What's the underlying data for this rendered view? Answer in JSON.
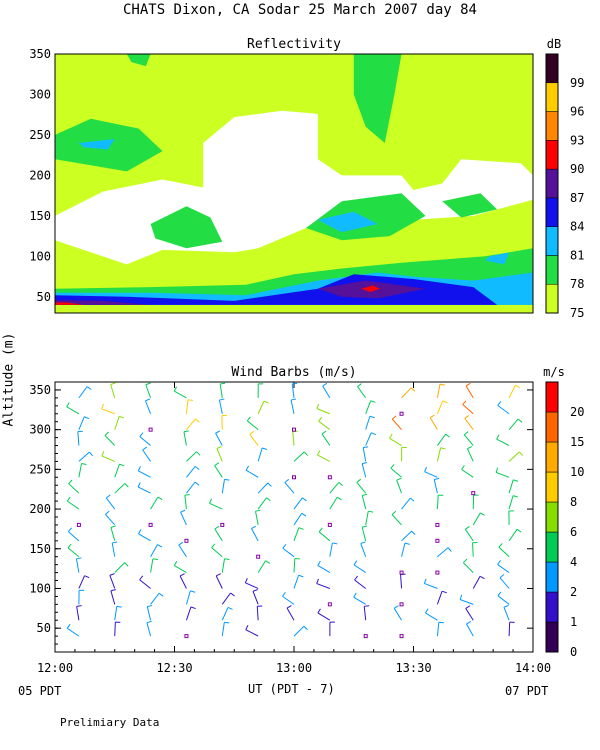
{
  "title": "CHATS Dixon, CA   Sodar   25 March 2007   day  84",
  "yaxis_label": "Altitude  (m)",
  "xaxis_label": "UT  (PDT - 7)",
  "left_time_label": "05 PDT",
  "right_time_label": "07 PDT",
  "footer_note": "Prelimiary Data",
  "chart_data": [
    {
      "type": "heatmap",
      "title": "Reflectivity",
      "colorbar_unit": "dB",
      "x_ticks": [
        "12:00",
        "12:30",
        "13:00",
        "13:30",
        "14:00"
      ],
      "x_range_hours_ut": [
        12.0,
        14.0
      ],
      "y_ticks": [
        50,
        100,
        150,
        200,
        250,
        300,
        350
      ],
      "ylim": [
        30,
        350
      ],
      "color_levels": [
        {
          "label": "75",
          "color": "#ccff22"
        },
        {
          "label": "78",
          "color": "#22dd44"
        },
        {
          "label": "81",
          "color": "#11bbff"
        },
        {
          "label": "84",
          "color": "#1111ee"
        },
        {
          "label": "87",
          "color": "#551199"
        },
        {
          "label": "90",
          "color": "#ff0000"
        },
        {
          "label": "93",
          "color": "#ff8800"
        },
        {
          "label": "96",
          "color": "#ffcc00"
        },
        {
          "label": "99",
          "color": "#330022"
        }
      ],
      "regions": [
        {
          "level": "75",
          "polygon_time_alt": [
            [
              12.0,
              30
            ],
            [
              14.0,
              30
            ],
            [
              14.0,
              350
            ],
            [
              12.0,
              350
            ]
          ]
        },
        {
          "level": "none",
          "polygon_time_alt": [
            [
              12.0,
              150
            ],
            [
              12.2,
              180
            ],
            [
              12.45,
              195
            ],
            [
              12.62,
              185
            ],
            [
              12.62,
              240
            ],
            [
              12.75,
              272
            ],
            [
              12.95,
              280
            ],
            [
              13.1,
              276
            ],
            [
              13.1,
              220
            ],
            [
              13.2,
              200
            ],
            [
              13.45,
              200
            ],
            [
              13.5,
              182
            ],
            [
              13.62,
              190
            ],
            [
              13.7,
              220
            ],
            [
              13.95,
              215
            ],
            [
              14.0,
              200
            ],
            [
              14.0,
              170
            ],
            [
              13.75,
              150
            ],
            [
              13.5,
              145
            ],
            [
              13.3,
              130
            ],
            [
              13.05,
              135
            ],
            [
              12.85,
              110
            ],
            [
              12.75,
              105
            ],
            [
              12.45,
              108
            ],
            [
              12.3,
              90
            ],
            [
              12.0,
              120
            ]
          ]
        },
        {
          "level": "78",
          "polygon_time_alt": [
            [
              12.0,
              60
            ],
            [
              12.4,
              62
            ],
            [
              12.8,
              65
            ],
            [
              13.0,
              78
            ],
            [
              13.2,
              85
            ],
            [
              13.45,
              92
            ],
            [
              13.8,
              100
            ],
            [
              14.0,
              110
            ],
            [
              14.0,
              40
            ],
            [
              12.0,
              40
            ]
          ]
        },
        {
          "level": "78",
          "polygon_time_alt": [
            [
              12.0,
              250
            ],
            [
              12.15,
              270
            ],
            [
              12.35,
              258
            ],
            [
              12.45,
              230
            ],
            [
              12.3,
              205
            ],
            [
              12.1,
              215
            ],
            [
              12.0,
              220
            ]
          ]
        },
        {
          "level": "78",
          "polygon_time_alt": [
            [
              12.4,
              140
            ],
            [
              12.55,
              162
            ],
            [
              12.65,
              148
            ],
            [
              12.7,
              118
            ],
            [
              12.55,
              110
            ],
            [
              12.42,
              122
            ]
          ]
        },
        {
          "level": "78",
          "polygon_time_alt": [
            [
              13.05,
              135
            ],
            [
              13.2,
              168
            ],
            [
              13.45,
              178
            ],
            [
              13.55,
              150
            ],
            [
              13.4,
              125
            ],
            [
              13.2,
              120
            ]
          ]
        },
        {
          "level": "78",
          "polygon_time_alt": [
            [
              13.62,
              168
            ],
            [
              13.78,
              178
            ],
            [
              13.85,
              158
            ],
            [
              13.7,
              148
            ]
          ]
        },
        {
          "level": "78",
          "polygon_time_alt": [
            [
              13.25,
              350
            ],
            [
              13.45,
              350
            ],
            [
              13.42,
              300
            ],
            [
              13.38,
              240
            ],
            [
              13.3,
              260
            ],
            [
              13.25,
              300
            ]
          ]
        },
        {
          "level": "78",
          "polygon_time_alt": [
            [
              12.3,
              350
            ],
            [
              12.4,
              350
            ],
            [
              12.38,
              335
            ],
            [
              12.32,
              340
            ]
          ]
        },
        {
          "level": "81",
          "polygon_time_alt": [
            [
              12.0,
              40
            ],
            [
              14.0,
              40
            ],
            [
              14.0,
              80
            ],
            [
              13.75,
              70
            ],
            [
              13.5,
              75
            ],
            [
              13.35,
              80
            ],
            [
              13.1,
              70
            ],
            [
              12.8,
              52
            ],
            [
              12.4,
              55
            ],
            [
              12.0,
              55
            ]
          ]
        },
        {
          "level": "81",
          "polygon_time_alt": [
            [
              12.1,
              240
            ],
            [
              12.25,
              245
            ],
            [
              12.22,
              232
            ],
            [
              12.12,
              235
            ]
          ]
        },
        {
          "level": "81",
          "polygon_time_alt": [
            [
              13.1,
              145
            ],
            [
              13.25,
              155
            ],
            [
              13.35,
              140
            ],
            [
              13.2,
              130
            ]
          ]
        },
        {
          "level": "81",
          "polygon_time_alt": [
            [
              13.82,
              100
            ],
            [
              13.9,
              105
            ],
            [
              13.88,
              90
            ],
            [
              13.8,
              95
            ]
          ]
        },
        {
          "level": "84",
          "polygon_time_alt": [
            [
              12.0,
              40
            ],
            [
              13.85,
              40
            ],
            [
              13.75,
              62
            ],
            [
              13.5,
              72
            ],
            [
              13.25,
              78
            ],
            [
              13.1,
              60
            ],
            [
              12.75,
              45
            ],
            [
              12.3,
              50
            ],
            [
              12.0,
              52
            ]
          ]
        },
        {
          "level": "87",
          "polygon_time_alt": [
            [
              12.0,
              40
            ],
            [
              12.4,
              40
            ],
            [
              12.2,
              45
            ],
            [
              12.0,
              46
            ]
          ]
        },
        {
          "level": "87",
          "polygon_time_alt": [
            [
              13.1,
              60
            ],
            [
              13.3,
              70
            ],
            [
              13.55,
              60
            ],
            [
              13.35,
              48
            ],
            [
              13.2,
              50
            ]
          ]
        },
        {
          "level": "90",
          "polygon_time_alt": [
            [
              13.28,
              60
            ],
            [
              13.33,
              64
            ],
            [
              13.36,
              60
            ],
            [
              13.32,
              56
            ]
          ]
        },
        {
          "level": "90",
          "polygon_time_alt": [
            [
              12.0,
              40
            ],
            [
              12.12,
              40
            ],
            [
              12.05,
              43
            ],
            [
              12.0,
              43
            ]
          ]
        }
      ]
    },
    {
      "type": "scatter",
      "title": "Wind Barbs (m/s)",
      "colorbar_unit": "m/s",
      "x_ticks": [
        "12:00",
        "12:30",
        "13:00",
        "13:30",
        "14:00"
      ],
      "x_range_hours_ut": [
        12.0,
        14.0
      ],
      "y_ticks": [
        50,
        100,
        150,
        200,
        250,
        300,
        350
      ],
      "ylim": [
        20,
        360
      ],
      "color_levels": [
        {
          "label": "0",
          "color": "#330055"
        },
        {
          "label": "1",
          "color": "#3311cc"
        },
        {
          "label": "2",
          "color": "#0099ff"
        },
        {
          "label": "4",
          "color": "#00cc55"
        },
        {
          "label": "6",
          "color": "#88dd00"
        },
        {
          "label": "8",
          "color": "#ffcc00"
        },
        {
          "label": "10",
          "color": "#ffaa00"
        },
        {
          "label": "15",
          "color": "#ff6600"
        },
        {
          "label": "20",
          "color": "#ff0000"
        }
      ],
      "barb_times_ut": [
        12.1,
        12.25,
        12.4,
        12.55,
        12.7,
        12.85,
        13.0,
        13.15,
        13.3,
        13.45,
        13.6,
        13.75,
        13.9
      ],
      "barb_altitudes_m": [
        40,
        60,
        80,
        100,
        120,
        140,
        160,
        180,
        200,
        220,
        240,
        260,
        280,
        300,
        320,
        340
      ]
    }
  ]
}
